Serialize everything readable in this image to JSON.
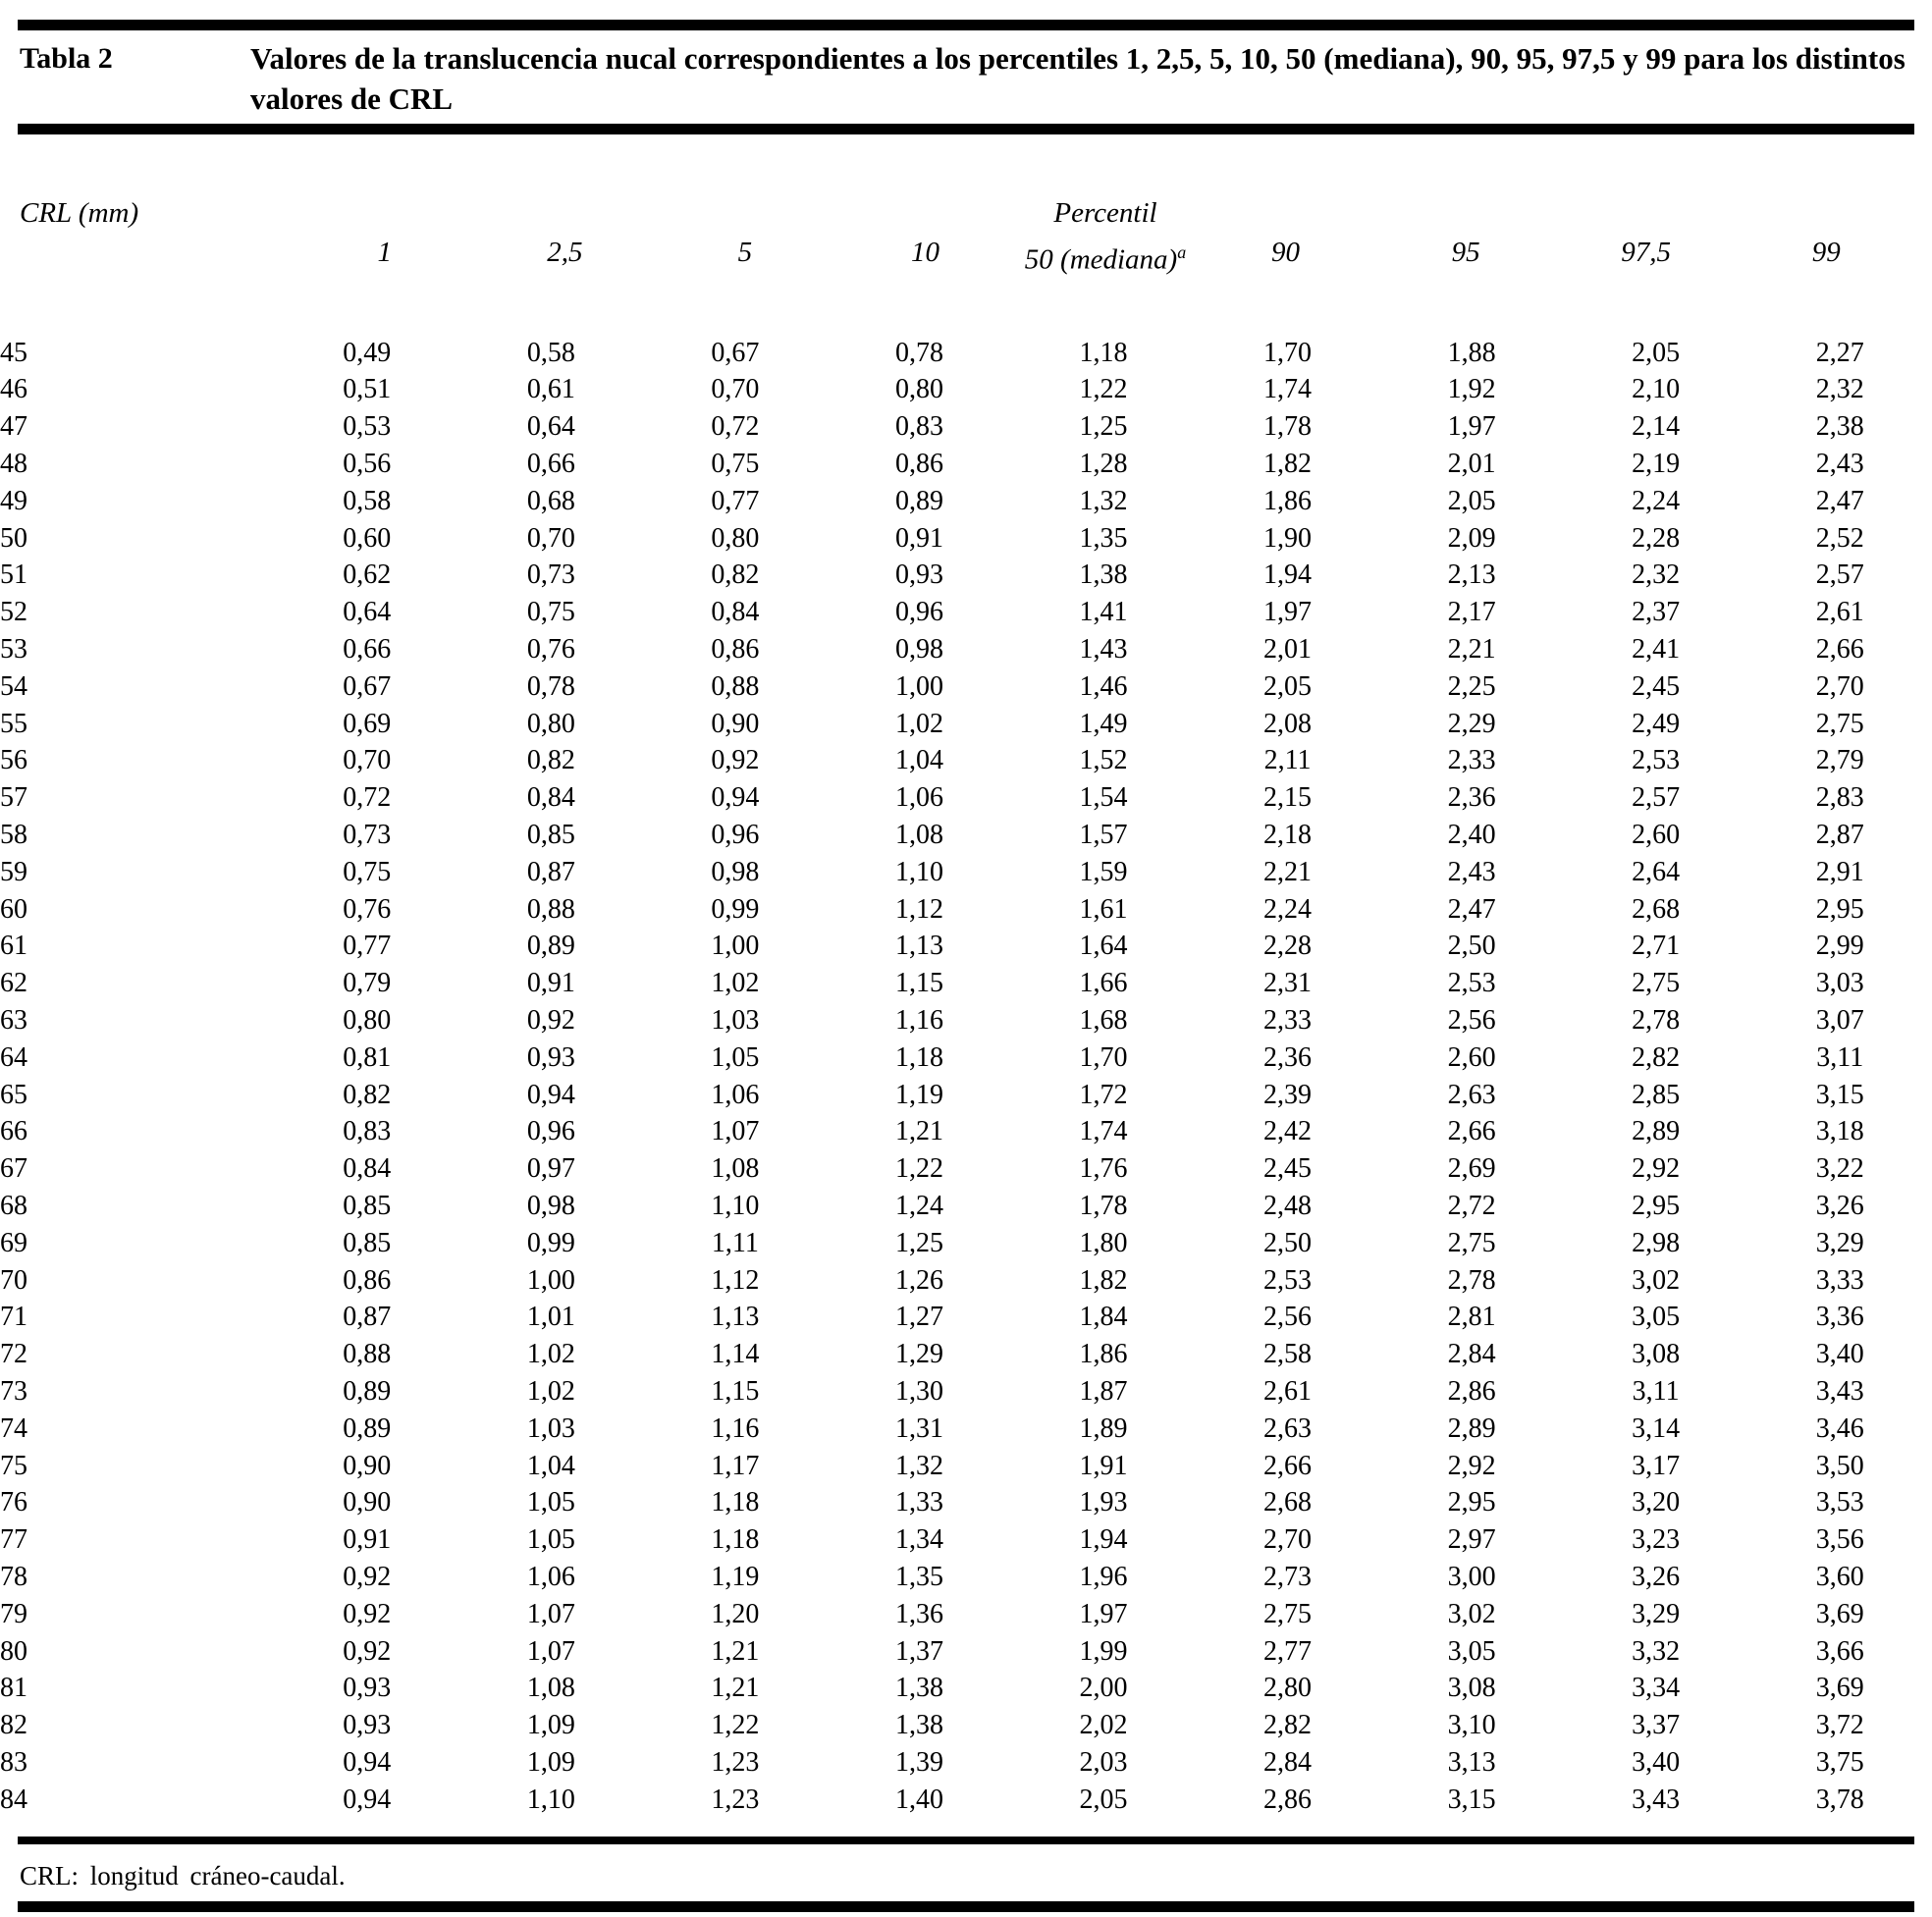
{
  "table": {
    "label": "Tabla 2",
    "title": "Valores de la translucencia nucal correspondientes a los percentiles 1, 2,5, 5, 10, 50 (mediana), 90, 95, 97,5 y 99 para los distintos valores de CRL",
    "row_header_label": "CRL (mm)",
    "col_group_label": "Percentil",
    "columns": [
      {
        "label": "1"
      },
      {
        "label": "2,5"
      },
      {
        "label": "5"
      },
      {
        "label": "10"
      },
      {
        "label": "50 (mediana)",
        "sup": "a"
      },
      {
        "label": "90"
      },
      {
        "label": "95"
      },
      {
        "label": "97,5"
      },
      {
        "label": "99"
      }
    ],
    "rows": [
      [
        "45",
        "0,49",
        "0,58",
        "0,67",
        "0,78",
        "1,18",
        "1,70",
        "1,88",
        "2,05",
        "2,27"
      ],
      [
        "46",
        "0,51",
        "0,61",
        "0,70",
        "0,80",
        "1,22",
        "1,74",
        "1,92",
        "2,10",
        "2,32"
      ],
      [
        "47",
        "0,53",
        "0,64",
        "0,72",
        "0,83",
        "1,25",
        "1,78",
        "1,97",
        "2,14",
        "2,38"
      ],
      [
        "48",
        "0,56",
        "0,66",
        "0,75",
        "0,86",
        "1,28",
        "1,82",
        "2,01",
        "2,19",
        "2,43"
      ],
      [
        "49",
        "0,58",
        "0,68",
        "0,77",
        "0,89",
        "1,32",
        "1,86",
        "2,05",
        "2,24",
        "2,47"
      ],
      [
        "50",
        "0,60",
        "0,70",
        "0,80",
        "0,91",
        "1,35",
        "1,90",
        "2,09",
        "2,28",
        "2,52"
      ],
      [
        "51",
        "0,62",
        "0,73",
        "0,82",
        "0,93",
        "1,38",
        "1,94",
        "2,13",
        "2,32",
        "2,57"
      ],
      [
        "52",
        "0,64",
        "0,75",
        "0,84",
        "0,96",
        "1,41",
        "1,97",
        "2,17",
        "2,37",
        "2,61"
      ],
      [
        "53",
        "0,66",
        "0,76",
        "0,86",
        "0,98",
        "1,43",
        "2,01",
        "2,21",
        "2,41",
        "2,66"
      ],
      [
        "54",
        "0,67",
        "0,78",
        "0,88",
        "1,00",
        "1,46",
        "2,05",
        "2,25",
        "2,45",
        "2,70"
      ],
      [
        "55",
        "0,69",
        "0,80",
        "0,90",
        "1,02",
        "1,49",
        "2,08",
        "2,29",
        "2,49",
        "2,75"
      ],
      [
        "56",
        "0,70",
        "0,82",
        "0,92",
        "1,04",
        "1,52",
        "2,11",
        "2,33",
        "2,53",
        "2,79"
      ],
      [
        "57",
        "0,72",
        "0,84",
        "0,94",
        "1,06",
        "1,54",
        "2,15",
        "2,36",
        "2,57",
        "2,83"
      ],
      [
        "58",
        "0,73",
        "0,85",
        "0,96",
        "1,08",
        "1,57",
        "2,18",
        "2,40",
        "2,60",
        "2,87"
      ],
      [
        "59",
        "0,75",
        "0,87",
        "0,98",
        "1,10",
        "1,59",
        "2,21",
        "2,43",
        "2,64",
        "2,91"
      ],
      [
        "60",
        "0,76",
        "0,88",
        "0,99",
        "1,12",
        "1,61",
        "2,24",
        "2,47",
        "2,68",
        "2,95"
      ],
      [
        "61",
        "0,77",
        "0,89",
        "1,00",
        "1,13",
        "1,64",
        "2,28",
        "2,50",
        "2,71",
        "2,99"
      ],
      [
        "62",
        "0,79",
        "0,91",
        "1,02",
        "1,15",
        "1,66",
        "2,31",
        "2,53",
        "2,75",
        "3,03"
      ],
      [
        "63",
        "0,80",
        "0,92",
        "1,03",
        "1,16",
        "1,68",
        "2,33",
        "2,56",
        "2,78",
        "3,07"
      ],
      [
        "64",
        "0,81",
        "0,93",
        "1,05",
        "1,18",
        "1,70",
        "2,36",
        "2,60",
        "2,82",
        "3,11"
      ],
      [
        "65",
        "0,82",
        "0,94",
        "1,06",
        "1,19",
        "1,72",
        "2,39",
        "2,63",
        "2,85",
        "3,15"
      ],
      [
        "66",
        "0,83",
        "0,96",
        "1,07",
        "1,21",
        "1,74",
        "2,42",
        "2,66",
        "2,89",
        "3,18"
      ],
      [
        "67",
        "0,84",
        "0,97",
        "1,08",
        "1,22",
        "1,76",
        "2,45",
        "2,69",
        "2,92",
        "3,22"
      ],
      [
        "68",
        "0,85",
        "0,98",
        "1,10",
        "1,24",
        "1,78",
        "2,48",
        "2,72",
        "2,95",
        "3,26"
      ],
      [
        "69",
        "0,85",
        "0,99",
        "1,11",
        "1,25",
        "1,80",
        "2,50",
        "2,75",
        "2,98",
        "3,29"
      ],
      [
        "70",
        "0,86",
        "1,00",
        "1,12",
        "1,26",
        "1,82",
        "2,53",
        "2,78",
        "3,02",
        "3,33"
      ],
      [
        "71",
        "0,87",
        "1,01",
        "1,13",
        "1,27",
        "1,84",
        "2,56",
        "2,81",
        "3,05",
        "3,36"
      ],
      [
        "72",
        "0,88",
        "1,02",
        "1,14",
        "1,29",
        "1,86",
        "2,58",
        "2,84",
        "3,08",
        "3,40"
      ],
      [
        "73",
        "0,89",
        "1,02",
        "1,15",
        "1,30",
        "1,87",
        "2,61",
        "2,86",
        "3,11",
        "3,43"
      ],
      [
        "74",
        "0,89",
        "1,03",
        "1,16",
        "1,31",
        "1,89",
        "2,63",
        "2,89",
        "3,14",
        "3,46"
      ],
      [
        "75",
        "0,90",
        "1,04",
        "1,17",
        "1,32",
        "1,91",
        "2,66",
        "2,92",
        "3,17",
        "3,50"
      ],
      [
        "76",
        "0,90",
        "1,05",
        "1,18",
        "1,33",
        "1,93",
        "2,68",
        "2,95",
        "3,20",
        "3,53"
      ],
      [
        "77",
        "0,91",
        "1,05",
        "1,18",
        "1,34",
        "1,94",
        "2,70",
        "2,97",
        "3,23",
        "3,56"
      ],
      [
        "78",
        "0,92",
        "1,06",
        "1,19",
        "1,35",
        "1,96",
        "2,73",
        "3,00",
        "3,26",
        "3,60"
      ],
      [
        "79",
        "0,92",
        "1,07",
        "1,20",
        "1,36",
        "1,97",
        "2,75",
        "3,02",
        "3,29",
        "3,69"
      ],
      [
        "80",
        "0,92",
        "1,07",
        "1,21",
        "1,37",
        "1,99",
        "2,77",
        "3,05",
        "3,32",
        "3,66"
      ],
      [
        "81",
        "0,93",
        "1,08",
        "1,21",
        "1,38",
        "2,00",
        "2,80",
        "3,08",
        "3,34",
        "3,69"
      ],
      [
        "82",
        "0,93",
        "1,09",
        "1,22",
        "1,38",
        "2,02",
        "2,82",
        "3,10",
        "3,37",
        "3,72"
      ],
      [
        "83",
        "0,94",
        "1,09",
        "1,23",
        "1,39",
        "2,03",
        "2,84",
        "3,13",
        "3,40",
        "3,75"
      ],
      [
        "84",
        "0,94",
        "1,10",
        "1,23",
        "1,40",
        "2,05",
        "2,86",
        "3,15",
        "3,43",
        "3,78"
      ]
    ],
    "footnote": "CRL: longitud cráneo-caudal."
  }
}
